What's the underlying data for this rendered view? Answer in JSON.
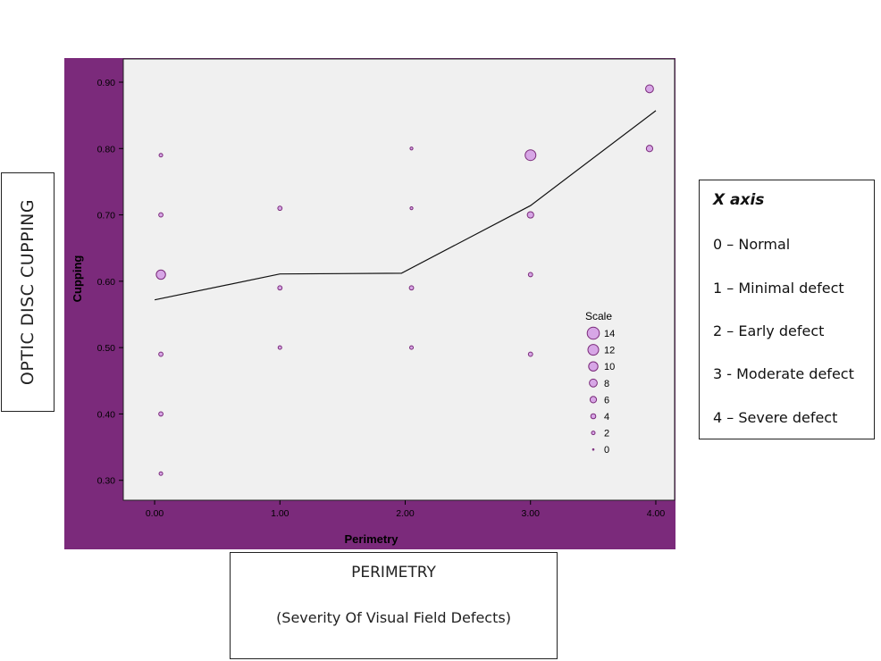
{
  "left_label": "OPTIC DISC CUPPING",
  "bottom_box": {
    "line1": "PERIMETRY",
    "line2": "(Severity Of Visual Field Defects)"
  },
  "x_axis_legend": {
    "title": "X axis",
    "items": [
      "0 – Normal",
      "1 – Minimal defect",
      "2 – Early defect",
      "3 - Moderate defect",
      "4 – Severe defect"
    ]
  },
  "colors": {
    "frame": "#7b2a7b",
    "plot_bg": "#f0f0f0",
    "marker_fill": "#d7a6e6",
    "marker_stroke": "#7a2a7a",
    "line": "#111111"
  },
  "chart_data": {
    "type": "scatter",
    "xlabel": "Perimetry",
    "ylabel": "Cupping",
    "xlim": [
      -0.25,
      4.15
    ],
    "ylim": [
      0.27,
      0.935
    ],
    "x_ticks": [
      "0.00",
      "1.00",
      "2.00",
      "3.00",
      "4.00"
    ],
    "y_ticks": [
      "0.30",
      "0.40",
      "0.50",
      "0.60",
      "0.70",
      "0.80",
      "0.90"
    ],
    "size_legend_title": "Scale",
    "size_legend": [
      "14",
      "12",
      "10",
      "8",
      "6",
      "4",
      "2",
      "0"
    ],
    "points": [
      {
        "x": 0.05,
        "y": 0.31,
        "count": 2
      },
      {
        "x": 0.05,
        "y": 0.4,
        "count": 3
      },
      {
        "x": 0.05,
        "y": 0.49,
        "count": 3
      },
      {
        "x": 0.05,
        "y": 0.61,
        "count": 10
      },
      {
        "x": 0.05,
        "y": 0.7,
        "count": 3
      },
      {
        "x": 0.05,
        "y": 0.79,
        "count": 2
      },
      {
        "x": 1.0,
        "y": 0.5,
        "count": 2
      },
      {
        "x": 1.0,
        "y": 0.59,
        "count": 3
      },
      {
        "x": 1.0,
        "y": 0.71,
        "count": 3
      },
      {
        "x": 2.05,
        "y": 0.5,
        "count": 2
      },
      {
        "x": 2.05,
        "y": 0.59,
        "count": 3
      },
      {
        "x": 2.05,
        "y": 0.71,
        "count": 1
      },
      {
        "x": 2.05,
        "y": 0.8,
        "count": 1
      },
      {
        "x": 3.0,
        "y": 0.49,
        "count": 3
      },
      {
        "x": 3.0,
        "y": 0.61,
        "count": 3
      },
      {
        "x": 3.0,
        "y": 0.7,
        "count": 6
      },
      {
        "x": 3.0,
        "y": 0.79,
        "count": 12
      },
      {
        "x": 3.95,
        "y": 0.8,
        "count": 6
      },
      {
        "x": 3.95,
        "y": 0.89,
        "count": 8
      }
    ],
    "fit_line": [
      {
        "x": 0.0,
        "y": 0.572
      },
      {
        "x": 1.0,
        "y": 0.611
      },
      {
        "x": 1.97,
        "y": 0.612
      },
      {
        "x": 3.0,
        "y": 0.714
      },
      {
        "x": 4.0,
        "y": 0.857
      }
    ]
  }
}
